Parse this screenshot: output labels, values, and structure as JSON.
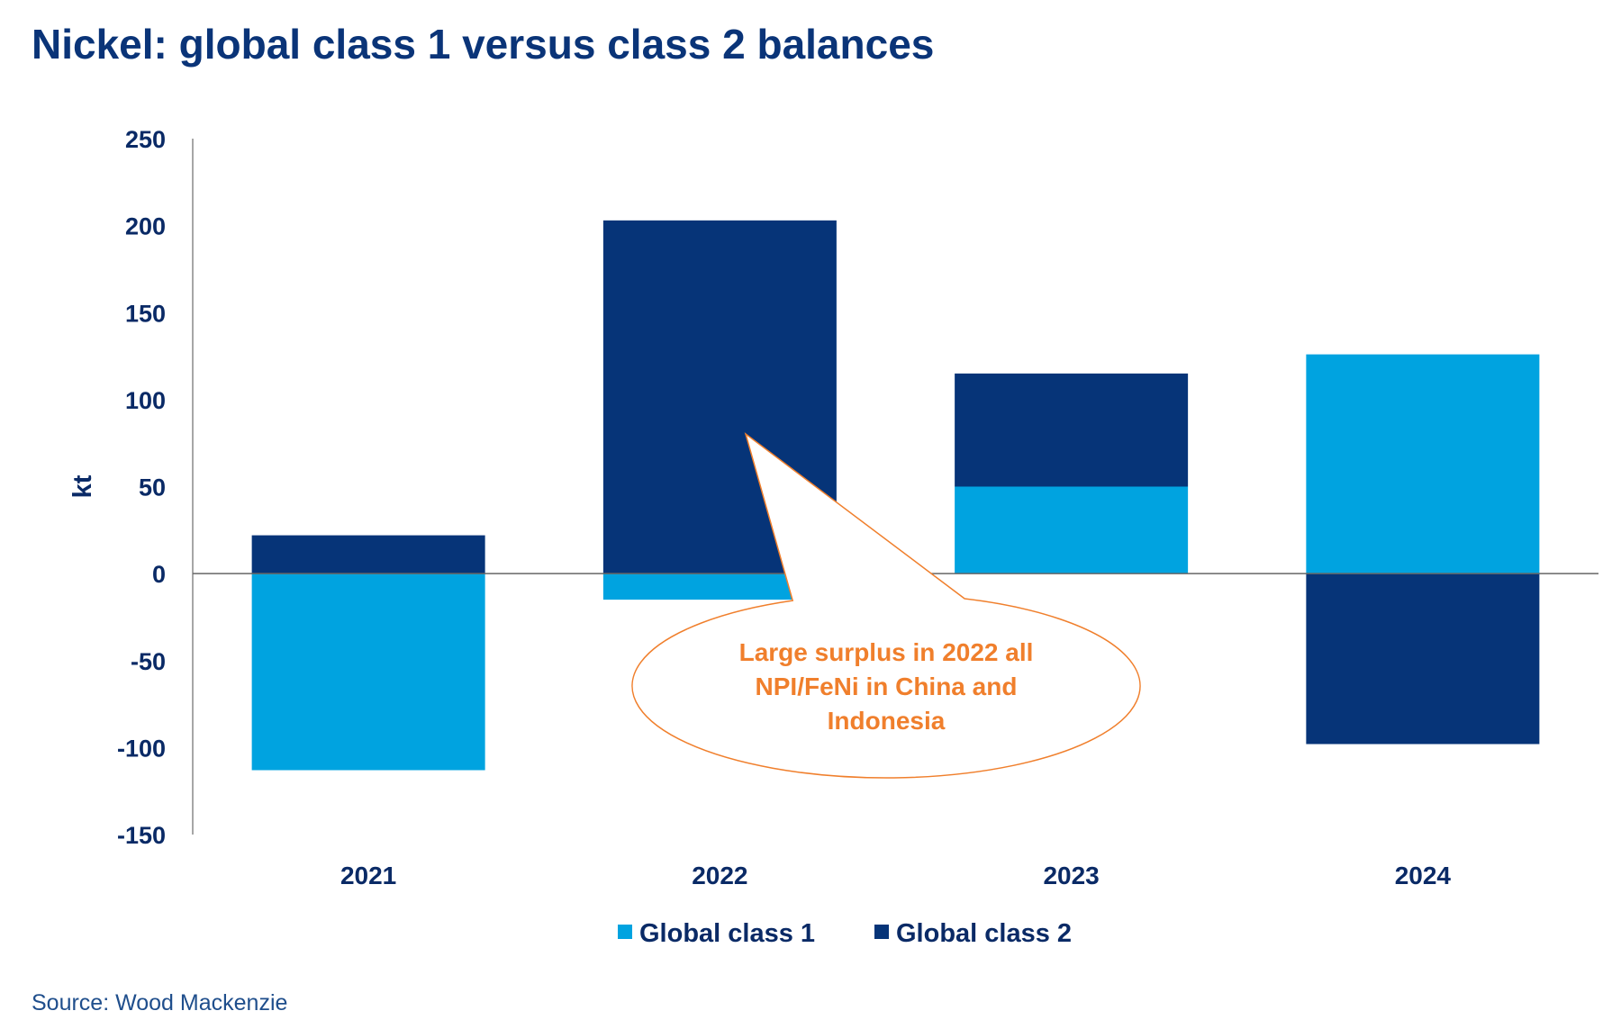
{
  "title": "Nickel: global class 1 versus class 2 balances",
  "source": "Source: Wood Mackenzie",
  "chart_data": {
    "type": "bar",
    "stacked": true,
    "title": "Nickel: global class 1 versus class 2 balances",
    "xlabel": "",
    "ylabel": "kt",
    "ylim": [
      -150,
      250
    ],
    "yticks": [
      250,
      200,
      150,
      100,
      50,
      0,
      -50,
      -100,
      -150
    ],
    "categories": [
      "2021",
      "2022",
      "2023",
      "2024"
    ],
    "series": [
      {
        "name": "Global class 1",
        "color": "#00a3e0",
        "values": [
          -113,
          -15,
          50,
          126
        ]
      },
      {
        "name": "Global class 2",
        "color": "#063478",
        "values": [
          22,
          203,
          65,
          -98
        ]
      }
    ],
    "grid": false,
    "legend": "bottom",
    "annotation": {
      "lines": [
        "Large surplus in 2022 all",
        "NPI/FeNi in China and",
        "Indonesia"
      ],
      "color": "#f07f2c",
      "points_to": "2022"
    }
  }
}
